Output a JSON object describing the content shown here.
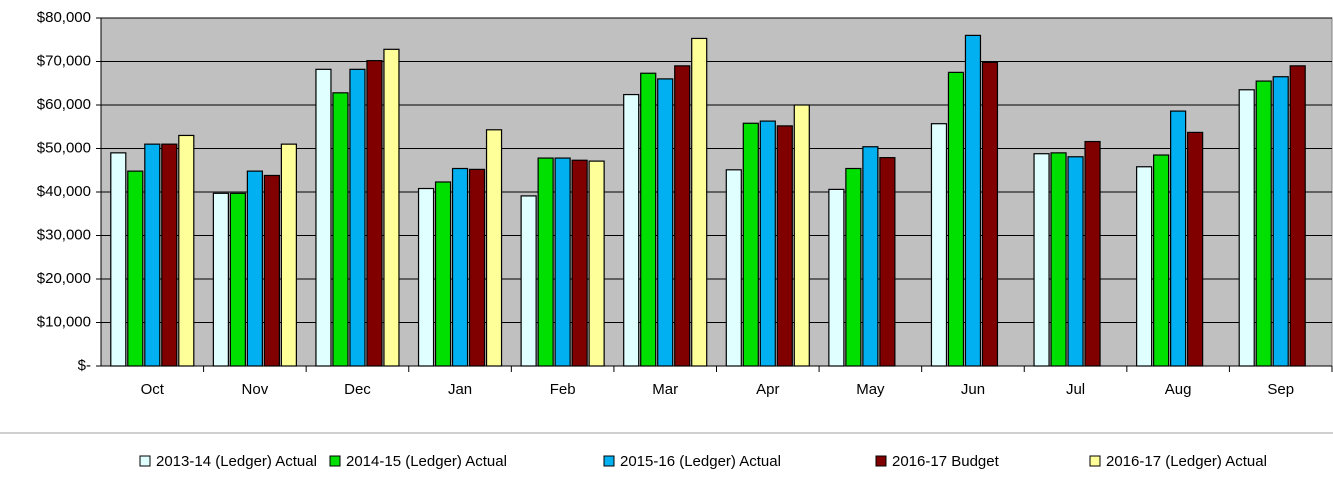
{
  "chart_data": {
    "type": "bar",
    "categories": [
      "Oct",
      "Nov",
      "Dec",
      "Jan",
      "Feb",
      "Mar",
      "Apr",
      "May",
      "Jun",
      "Jul",
      "Aug",
      "Sep"
    ],
    "series": [
      {
        "name": "2013-14 (Ledger) Actual",
        "color": "#e0ffff",
        "values": [
          49000,
          39700,
          68200,
          40800,
          39100,
          62400,
          45100,
          40600,
          55700,
          48800,
          45800,
          63500
        ]
      },
      {
        "name": "2014-15 (Ledger) Actual",
        "color": "#00e000",
        "values": [
          44800,
          39700,
          62800,
          42300,
          47800,
          67300,
          55800,
          45400,
          67500,
          49000,
          48500,
          65500
        ]
      },
      {
        "name": "2015-16 (Ledger) Actual",
        "color": "#00b0f0",
        "values": [
          51000,
          44800,
          68200,
          45400,
          47800,
          66000,
          56300,
          50400,
          76000,
          48100,
          58600,
          66500
        ]
      },
      {
        "name": "2016-17 Budget",
        "color": "#800000",
        "values": [
          51000,
          43800,
          70200,
          45200,
          47300,
          69000,
          55200,
          47900,
          69800,
          51600,
          53700,
          69000
        ]
      },
      {
        "name": "2016-17 (Ledger) Actual",
        "color": "#ffff99",
        "values": [
          53000,
          51000,
          72800,
          54300,
          47100,
          75300,
          60000,
          null,
          null,
          null,
          null,
          null
        ]
      }
    ],
    "ylim": [
      0,
      80000
    ],
    "yticks": [
      {
        "value": 0,
        "label": "$-"
      },
      {
        "value": 10000,
        "label": "$10,000"
      },
      {
        "value": 20000,
        "label": "$20,000"
      },
      {
        "value": 30000,
        "label": "$30,000"
      },
      {
        "value": 40000,
        "label": "$40,000"
      },
      {
        "value": 50000,
        "label": "$50,000"
      },
      {
        "value": 60000,
        "label": "$60,000"
      },
      {
        "value": 70000,
        "label": "$70,000"
      },
      {
        "value": 80000,
        "label": "$80,000"
      }
    ],
    "grid": true,
    "plot_background": "#c0c0c0",
    "legend": "bottom"
  }
}
